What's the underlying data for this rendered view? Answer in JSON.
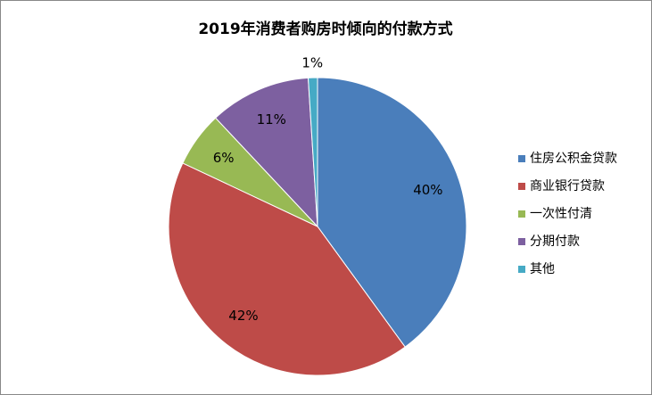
{
  "chart_data": {
    "type": "pie",
    "title": "2019年消费者购房时倾向的付款方式",
    "categories": [
      "住房公积金贷款",
      "商业银行贷款",
      "一次性付清",
      "分期付款",
      "其他"
    ],
    "values": [
      40,
      42,
      6,
      11,
      1
    ],
    "value_labels": [
      "40%",
      "42%",
      "6%",
      "11%",
      "1%"
    ],
    "colors": [
      "#4a7ebb",
      "#be4b48",
      "#98b954",
      "#7d60a0",
      "#46aac5"
    ],
    "legend": "right"
  }
}
